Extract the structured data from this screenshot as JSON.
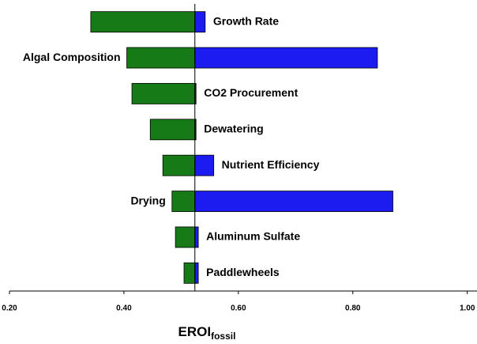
{
  "chart_data": {
    "type": "tornado",
    "categories": [
      "Growth Rate",
      "Algal Composition",
      "CO2 Procurement",
      "Dewatering",
      "Nutrient Efficiency",
      "Drying",
      "Aluminum Sulfate",
      "Paddlewheels"
    ],
    "baseline": 0.524,
    "series": [
      {
        "color": "#167a16",
        "values": [
          0.342,
          0.405,
          0.414,
          0.446,
          0.468,
          0.484,
          0.49,
          0.505
        ]
      },
      {
        "color": "#1c1cf0",
        "values": [
          0.542,
          0.843,
          0.526,
          0.526,
          0.557,
          0.87,
          0.53,
          0.53
        ]
      }
    ],
    "xlim": [
      0.2,
      1.017
    ],
    "xticks": [
      {
        "value": 0.2,
        "label": "0.20"
      },
      {
        "value": 0.4,
        "label": "0.40"
      },
      {
        "value": 0.6,
        "label": "0.60"
      },
      {
        "value": 0.8,
        "label": "0.80"
      },
      {
        "value": 1.0,
        "label": "1.00"
      }
    ],
    "xlabel": {
      "text": "EROI",
      "subscript": "fossil"
    }
  }
}
